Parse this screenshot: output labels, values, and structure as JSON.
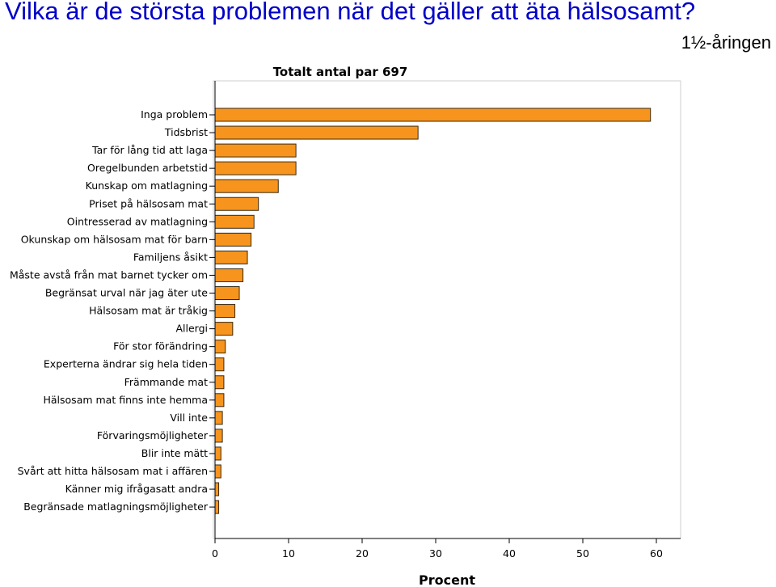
{
  "slide": {
    "title": "Vilka är de största problemen när det gäller att äta hälsosamt?",
    "subtitle": "1½-åringen"
  },
  "chart_data": {
    "type": "bar",
    "orientation": "horizontal",
    "title": "Totalt antal par 697",
    "xlabel": "Procent",
    "ylabel": "",
    "xlim": [
      0,
      63
    ],
    "xticks": [
      0,
      10,
      20,
      30,
      40,
      50,
      60
    ],
    "grid": false,
    "bar_color": "#f7941d",
    "categories": [
      "Inga problem",
      "Tidsbrist",
      "Tar för lång tid att laga",
      "Oregelbunden arbetstid",
      "Kunskap om matlagning",
      "Priset på hälsosam mat",
      "Ointresserad av matlagning",
      "Okunskap om hälsosam mat för barn",
      "Familjens åsikt",
      "Måste avstå från mat barnet tycker om",
      "Begränsat urval när jag äter ute",
      "Hälsosam mat är tråkig",
      "Allergi",
      "För stor förändring",
      "Experterna ändrar sig hela tiden",
      "Främmande mat",
      "Hälsosam mat finns inte hemma",
      "Vill inte",
      "Förvaringsmöjligheter",
      "Blir inte mätt",
      "Svårt att hitta hälsosam mat i affären",
      "Känner mig ifrågasatt andra",
      "Begränsade matlagningsmöjligheter"
    ],
    "values": [
      59.2,
      27.6,
      11.0,
      11.0,
      8.6,
      5.9,
      5.3,
      4.9,
      4.4,
      3.8,
      3.3,
      2.7,
      2.4,
      1.4,
      1.2,
      1.2,
      1.2,
      1.0,
      1.0,
      0.8,
      0.8,
      0.5,
      0.5
    ]
  }
}
